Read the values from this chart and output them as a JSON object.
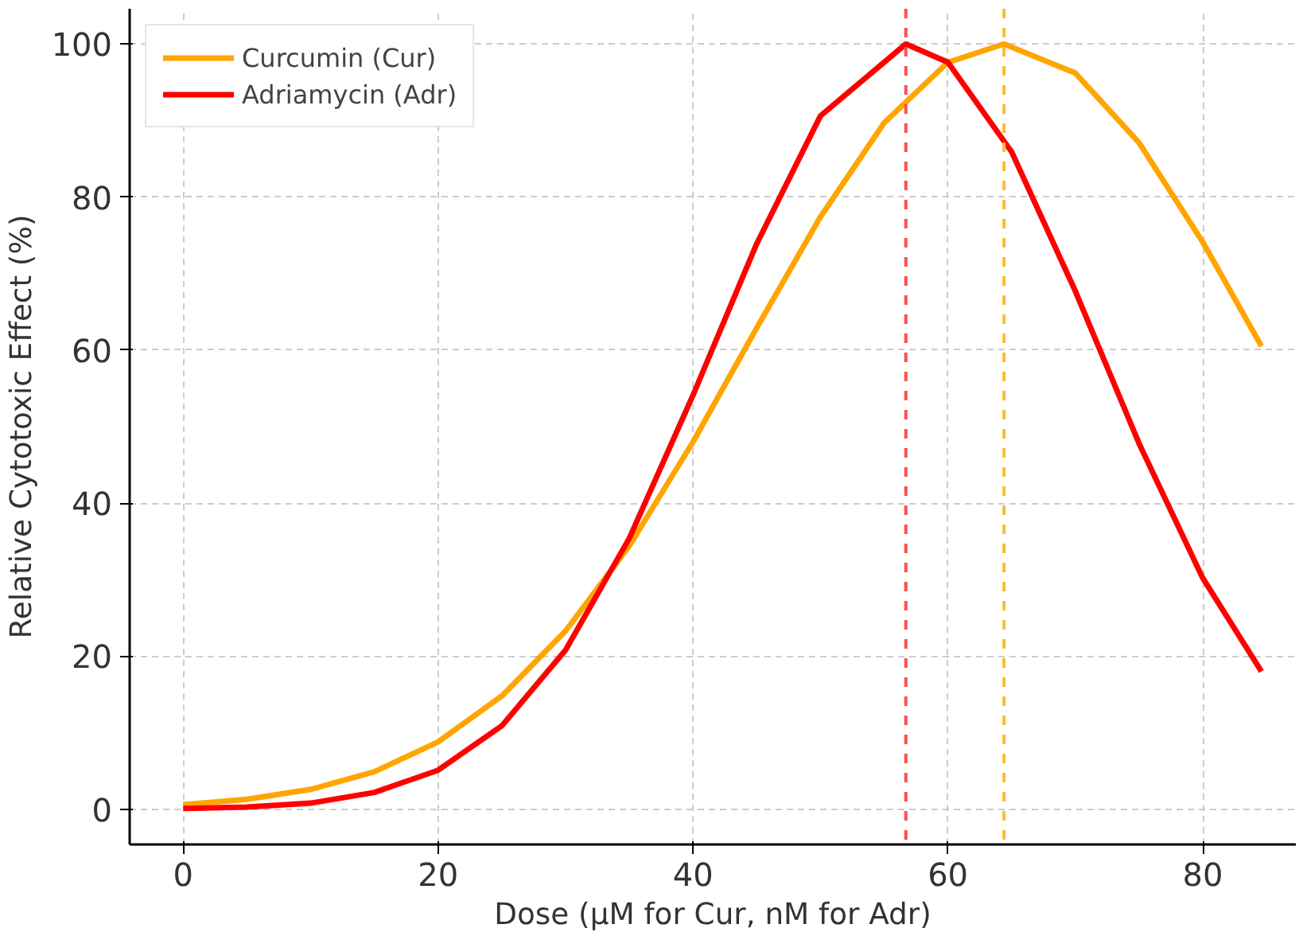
{
  "chart_data": {
    "type": "line",
    "xlabel": "Dose (µM for Cur, nM for Adr)",
    "ylabel": "Relative Cytotoxic Effect (%)",
    "xlim": [
      -4.2,
      87.3
    ],
    "ylim": [
      -4.6,
      104.6
    ],
    "xticks": [
      0,
      20,
      40,
      60,
      80
    ],
    "yticks": [
      0,
      20,
      40,
      60,
      80,
      100
    ],
    "grid": true,
    "legend": "top left",
    "line_style": "solid",
    "series": [
      {
        "name": "Curcumin (Cur)",
        "color": "#ffa500",
        "x": [
          0,
          5,
          10,
          15,
          20,
          25,
          30,
          35,
          40,
          45,
          50,
          55,
          60,
          64.4,
          70,
          75,
          80,
          84.6
        ],
        "values": [
          0.6,
          1.3,
          2.6,
          4.9,
          8.8,
          14.8,
          23.3,
          34.4,
          48.0,
          62.9,
          77.4,
          89.7,
          97.6,
          100,
          96.2,
          87.1,
          74.1,
          60.5
        ]
      },
      {
        "name": "Adriamycin (Adr)",
        "color": "#ff0000",
        "x": [
          0,
          5,
          10,
          15,
          20,
          25,
          30,
          35,
          40,
          45,
          50,
          56.7,
          60,
          65,
          70,
          75,
          80,
          84.6
        ],
        "values": [
          0.1,
          0.3,
          0.8,
          2.2,
          5.1,
          10.9,
          20.8,
          35.4,
          54.1,
          73.9,
          90.6,
          100,
          97.6,
          85.9,
          67.7,
          47.8,
          30.2,
          18.0
        ]
      }
    ],
    "ref_lines": [
      {
        "axis": "x",
        "value": 56.7,
        "color": "#ff4d4d",
        "line_style": "dashed"
      },
      {
        "axis": "x",
        "value": 64.4,
        "color": "#ffbb33",
        "line_style": "dashed"
      }
    ]
  }
}
